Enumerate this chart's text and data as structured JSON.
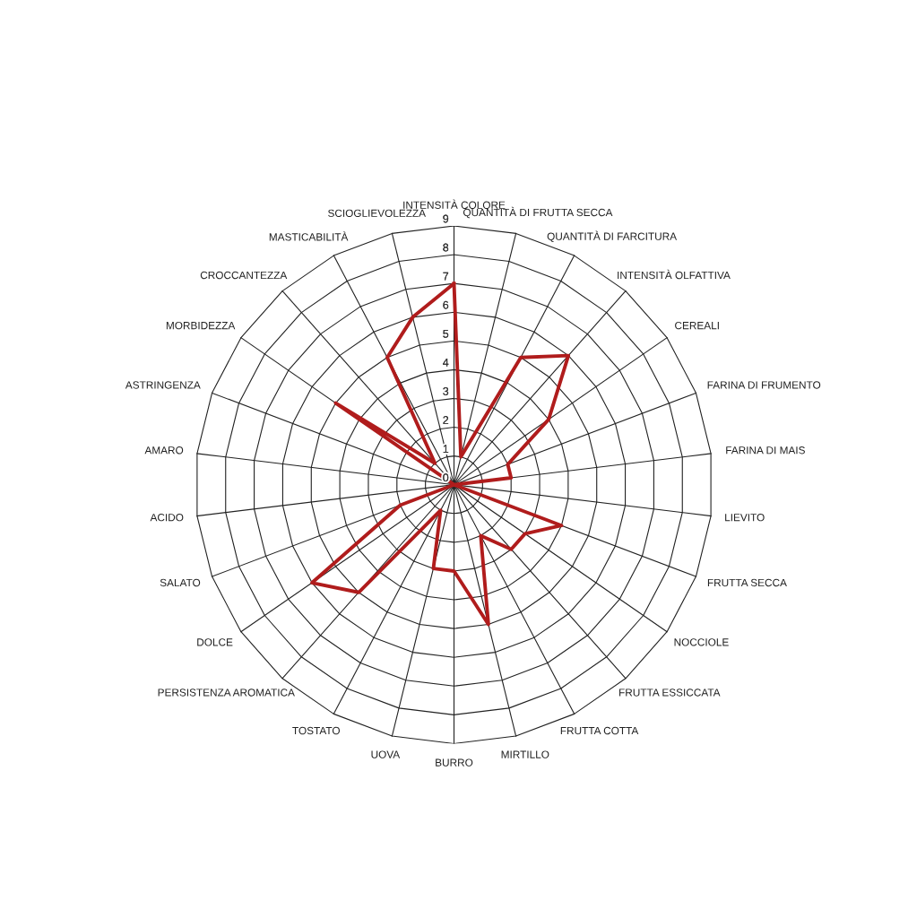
{
  "chart_data": {
    "type": "radar",
    "categories": [
      "INTENSITÀ COLORE",
      "QUANTITÀ DI FRUTTA SECCA",
      "QUANTITÀ DI FARCITURA",
      "INTENSITÀ OLFATTIVA",
      "CEREALI",
      "FARINA DI FRUMENTO",
      "FARINA DI MAIS",
      "LIEVITO",
      "FRUTTA SECCA",
      "NOCCIOLE",
      "FRUTTA ESSICCATA",
      "FRUTTA COTTA",
      "MIRTILLO",
      "BURRO",
      "UOVA",
      "TOSTATO",
      "PERSISTENZA AROMATICA",
      "DOLCE",
      "SALATO",
      "ACIDO",
      "AMARO",
      "ASTRINGENZA",
      "MORBIDEZZA",
      "CROCCANTEZZA",
      "MASTICABILITÀ",
      "SCIOGLIEVOLEZZA"
    ],
    "series": [
      {
        "color": "#b01c1c",
        "values": [
          7,
          1,
          5,
          6,
          4,
          2,
          2,
          0,
          4,
          3,
          3,
          2,
          5,
          3,
          3,
          1,
          5,
          6,
          2,
          0,
          0,
          0,
          5,
          1,
          5,
          6
        ]
      }
    ],
    "ylim": [
      0,
      9
    ],
    "yticks": [
      0,
      1,
      2,
      3,
      4,
      5,
      6,
      7,
      8,
      9
    ],
    "grid": true,
    "marker": "none",
    "line_style": "solid"
  }
}
